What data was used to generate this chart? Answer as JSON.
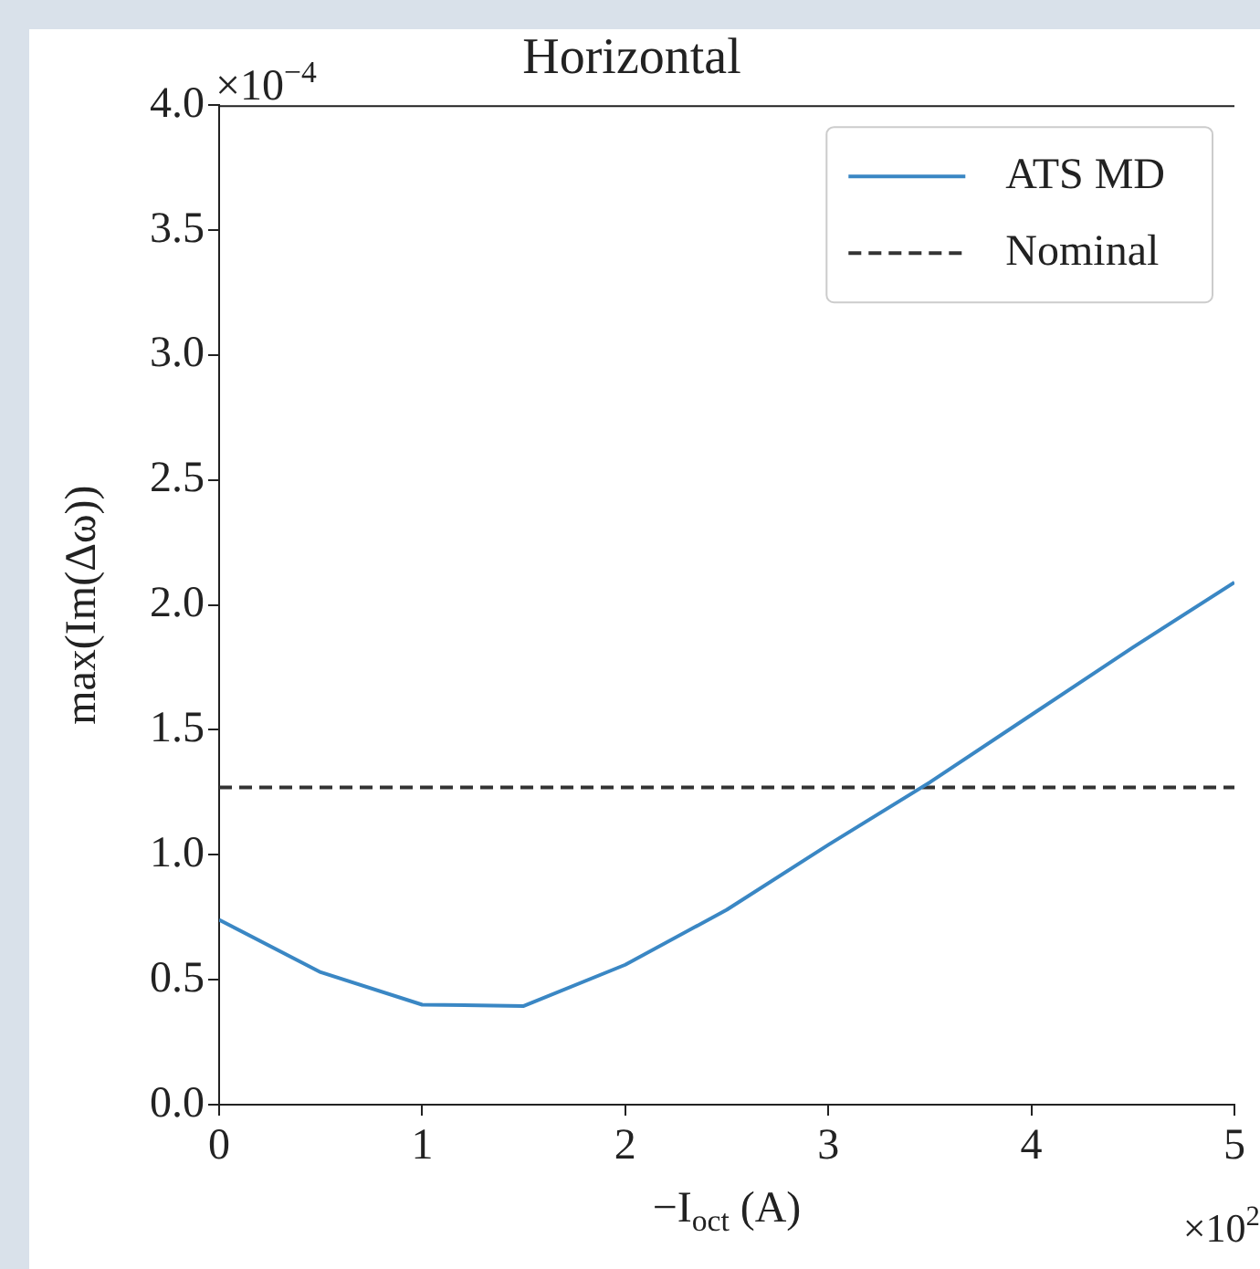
{
  "chart_data": {
    "type": "line",
    "title": "Horizontal",
    "xlabel": "−I$_{oct}$ (A)",
    "ylabel": "max(Im(Δω))",
    "annotations": [
      "×10$^{−4}$",
      "×10$^{2}$"
    ],
    "x": [
      0,
      0.5,
      1,
      1.5,
      2,
      2.5,
      3,
      3.5,
      4,
      4.5,
      5
    ],
    "series": [
      {
        "name": "ATS MD",
        "color": "#3a87c4",
        "values": [
          0.74,
          0.53,
          0.4,
          0.395,
          0.56,
          0.78,
          1.04,
          1.29,
          1.56,
          1.83,
          2.09
        ]
      }
    ],
    "ref_lines": [
      {
        "axis": "y",
        "value": 1.27,
        "label": "Nominal",
        "color": "#333333",
        "line_style": "dashed"
      }
    ],
    "xlim": [
      0,
      5
    ],
    "xticks": [
      0,
      1,
      2,
      3,
      4,
      5
    ],
    "ylim": [
      0,
      4
    ],
    "yticks": [
      {
        "value": 0,
        "label": "0.0"
      },
      {
        "value": 0.5,
        "label": "0.5"
      },
      {
        "value": 1,
        "label": "1.0"
      },
      {
        "value": 1.5,
        "label": "1.5"
      },
      {
        "value": 2,
        "label": "2.0"
      },
      {
        "value": 2.5,
        "label": "2.5"
      },
      {
        "value": 3,
        "label": "3.0"
      },
      {
        "value": 3.5,
        "label": "3.5"
      },
      {
        "value": 4,
        "label": "4.0"
      }
    ],
    "grid": false,
    "legend": "top right",
    "marker": "none",
    "line_style": "solid"
  }
}
